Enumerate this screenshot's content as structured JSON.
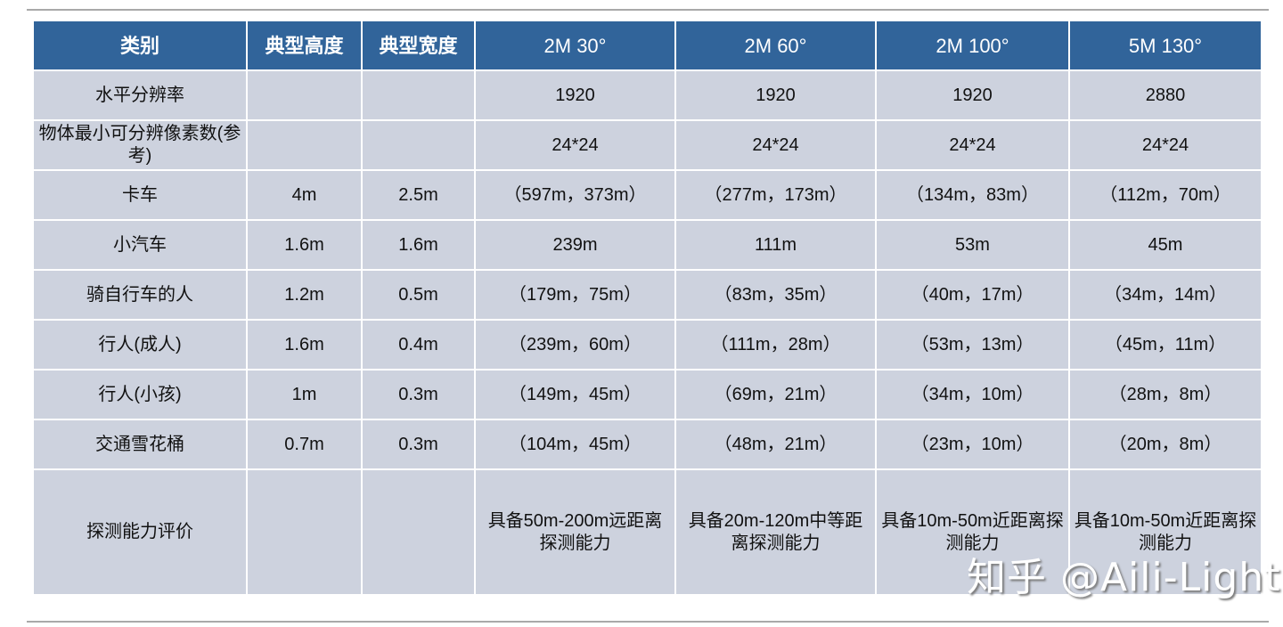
{
  "headers": [
    "类别",
    "典型高度",
    "典型宽度",
    "2M 30°",
    "2M 60°",
    "2M 100°",
    "5M 130°"
  ],
  "rows": [
    [
      "水平分辨率",
      "",
      "",
      "1920",
      "1920",
      "1920",
      "2880"
    ],
    [
      "物体最小可分辨像素数(参考)",
      "",
      "",
      "24*24",
      "24*24",
      "24*24",
      "24*24"
    ],
    [
      "卡车",
      "4m",
      "2.5m",
      "（597m，373m）",
      "（277m，173m）",
      "（134m，83m）",
      "（112m，70m）"
    ],
    [
      "小汽车",
      "1.6m",
      "1.6m",
      "239m",
      "111m",
      "53m",
      "45m"
    ],
    [
      "骑自行车的人",
      "1.2m",
      "0.5m",
      "（179m，75m）",
      "（83m，35m）",
      "（40m，17m）",
      "（34m，14m）"
    ],
    [
      "行人(成人)",
      "1.6m",
      "0.4m",
      "（239m，60m）",
      "（111m，28m）",
      "（53m，13m）",
      "（45m，11m）"
    ],
    [
      "行人(小孩)",
      "1m",
      "0.3m",
      "（149m，45m）",
      "（69m，21m）",
      "（34m，10m）",
      "（28m，8m）"
    ],
    [
      "交通雪花桶",
      "0.7m",
      "0.3m",
      "（104m，45m）",
      "（48m，21m）",
      "（23m，10m）",
      "（20m，8m）"
    ],
    [
      "探测能力评价",
      "",
      "",
      "具备50m-200m远距离探测能力",
      "具备20m-120m中等距离探测能力",
      "具备10m-50m近距离探测能力",
      "具备10m-50m近距离探测能力"
    ]
  ],
  "watermark": "知乎 @Aili-Light",
  "colors": {
    "header_bg": "#31649a",
    "cell_bg": "#cdd2de"
  }
}
